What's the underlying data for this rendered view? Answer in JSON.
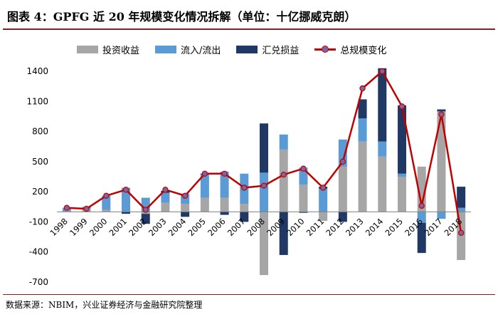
{
  "header": {
    "title": "图表 4：GPFG 近 20 年规模变化情况拆解（单位：十亿挪威克朗）"
  },
  "footer": {
    "source": "数据来源：NBIM，兴业证券经济与金融研究院整理"
  },
  "colors": {
    "investment_return": "#a6a6a6",
    "inflow": "#5b9bd5",
    "fx_gain": "#1f3864",
    "total_line": "#c00000",
    "total_marker": "#8064a2",
    "rule": "#8c1d25"
  },
  "chart_data": {
    "type": "bar",
    "title": "",
    "xlabel": "",
    "ylabel": "",
    "ylim": [
      -700,
      1400
    ],
    "yticks": [
      -700,
      -400,
      -100,
      200,
      500,
      800,
      1100,
      1400
    ],
    "grid": false,
    "legend_position": "top",
    "categories": [
      "1998",
      "1999",
      "2000",
      "2001",
      "2002",
      "2003",
      "2004",
      "2005",
      "2006",
      "2007",
      "2008",
      "2009",
      "2010",
      "2011",
      "2012",
      "2013",
      "2014",
      "2015",
      "2016",
      "2017",
      "2018"
    ],
    "series": [
      {
        "name": "投资收益",
        "kind": "stacked-bar",
        "values": [
          5,
          35,
          20,
          0,
          -20,
          90,
          80,
          140,
          140,
          80,
          -630,
          620,
          270,
          -90,
          450,
          700,
          550,
          350,
          450,
          1000,
          -480
        ]
      },
      {
        "name": "流入/流出",
        "kind": "stacked-bar",
        "values": [
          35,
          15,
          140,
          240,
          140,
          100,
          100,
          230,
          260,
          300,
          390,
          150,
          170,
          230,
          270,
          230,
          150,
          30,
          -110,
          -70,
          40
        ]
      },
      {
        "name": "汇兑损益",
        "kind": "stacked-bar",
        "values": [
          0,
          0,
          0,
          -20,
          -100,
          20,
          -50,
          10,
          -30,
          -100,
          490,
          -430,
          -10,
          20,
          -100,
          190,
          730,
          680,
          -300,
          20,
          210
        ]
      },
      {
        "name": "总规模变化",
        "kind": "line",
        "values": [
          40,
          30,
          160,
          220,
          20,
          220,
          160,
          380,
          380,
          240,
          260,
          370,
          430,
          240,
          500,
          1230,
          1400,
          1050,
          60,
          970,
          -210
        ]
      }
    ]
  }
}
